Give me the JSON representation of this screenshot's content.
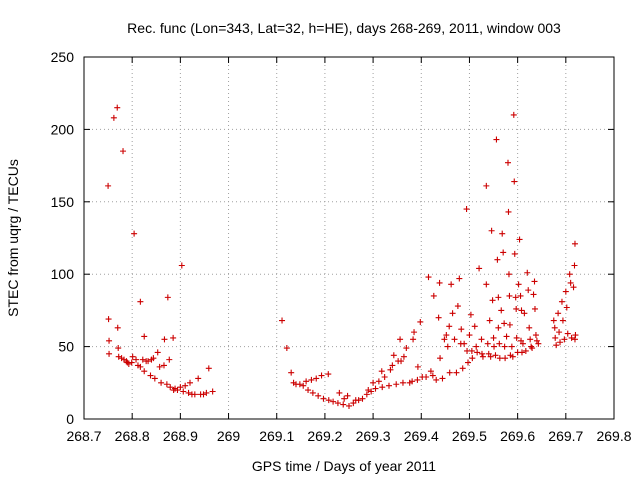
{
  "chart_data": {
    "type": "scatter",
    "title": "Rec. func (Lon=343, Lat=32, h=HE), days 268-269, 2011, window 003",
    "xlabel": "GPS time / Days of year 2011",
    "ylabel": "STEC from uqrg / TECUs",
    "xlim": [
      268.7,
      269.8
    ],
    "ylim": [
      0,
      250
    ],
    "xticks": [
      "268.7",
      "268.8",
      "268.9",
      "269",
      "269.1",
      "269.2",
      "269.3",
      "269.4",
      "269.5",
      "269.6",
      "269.7",
      "269.8"
    ],
    "yticks": [
      "0",
      "50",
      "100",
      "150",
      "200",
      "250"
    ],
    "grid": true,
    "marker": "+",
    "color": "#cc0000",
    "series": [
      {
        "name": "STEC",
        "points": [
          [
            268.75,
            161
          ],
          [
            268.751,
            69
          ],
          [
            268.752,
            54
          ],
          [
            268.752,
            45
          ],
          [
            268.762,
            208
          ],
          [
            268.769,
            215
          ],
          [
            268.77,
            63
          ],
          [
            268.771,
            49
          ],
          [
            268.772,
            43
          ],
          [
            268.778,
            42
          ],
          [
            268.781,
            185
          ],
          [
            268.783,
            41
          ],
          [
            268.788,
            40
          ],
          [
            268.79,
            39
          ],
          [
            268.793,
            38
          ],
          [
            268.799,
            39
          ],
          [
            268.801,
            43
          ],
          [
            268.804,
            128
          ],
          [
            268.808,
            41
          ],
          [
            268.812,
            37
          ],
          [
            268.817,
            81
          ],
          [
            268.817,
            36
          ],
          [
            268.822,
            41
          ],
          [
            268.825,
            57
          ],
          [
            268.825,
            33
          ],
          [
            268.829,
            40
          ],
          [
            268.833,
            40
          ],
          [
            268.838,
            30
          ],
          [
            268.84,
            41
          ],
          [
            268.844,
            42
          ],
          [
            268.847,
            28
          ],
          [
            268.853,
            46
          ],
          [
            268.857,
            36
          ],
          [
            268.86,
            25
          ],
          [
            268.866,
            37
          ],
          [
            268.867,
            55
          ],
          [
            268.872,
            24
          ],
          [
            268.874,
            84
          ],
          [
            268.877,
            41
          ],
          [
            268.879,
            22
          ],
          [
            268.885,
            56
          ],
          [
            268.886,
            20
          ],
          [
            268.889,
            21
          ],
          [
            268.894,
            20
          ],
          [
            268.9,
            22
          ],
          [
            268.903,
            106
          ],
          [
            268.906,
            19
          ],
          [
            268.91,
            23
          ],
          [
            268.917,
            18
          ],
          [
            268.92,
            25
          ],
          [
            268.924,
            17
          ],
          [
            268.93,
            17
          ],
          [
            268.937,
            28
          ],
          [
            268.942,
            17
          ],
          [
            268.948,
            17
          ],
          [
            268.954,
            18
          ],
          [
            268.959,
            35
          ],
          [
            268.967,
            19
          ],
          [
            269.111,
            68
          ],
          [
            269.121,
            49
          ],
          [
            269.13,
            32
          ],
          [
            269.135,
            25
          ],
          [
            269.14,
            24
          ],
          [
            269.148,
            24
          ],
          [
            269.155,
            23
          ],
          [
            269.161,
            26
          ],
          [
            269.165,
            20
          ],
          [
            269.172,
            27
          ],
          [
            269.175,
            18
          ],
          [
            269.182,
            28
          ],
          [
            269.186,
            16
          ],
          [
            269.193,
            30
          ],
          [
            269.197,
            14
          ],
          [
            269.207,
            31
          ],
          [
            269.208,
            13
          ],
          [
            269.217,
            12
          ],
          [
            269.227,
            11
          ],
          [
            269.23,
            18
          ],
          [
            269.238,
            10
          ],
          [
            269.24,
            14
          ],
          [
            269.247,
            16
          ],
          [
            269.25,
            9
          ],
          [
            269.259,
            11
          ],
          [
            269.264,
            13
          ],
          [
            269.27,
            13
          ],
          [
            269.278,
            14
          ],
          [
            269.287,
            17
          ],
          [
            269.29,
            20
          ],
          [
            269.296,
            19
          ],
          [
            269.3,
            25
          ],
          [
            269.305,
            21
          ],
          [
            269.312,
            26
          ],
          [
            269.318,
            33
          ],
          [
            269.319,
            22
          ],
          [
            269.324,
            29
          ],
          [
            269.333,
            23
          ],
          [
            269.336,
            34
          ],
          [
            269.34,
            37
          ],
          [
            269.343,
            44
          ],
          [
            269.348,
            24
          ],
          [
            269.352,
            40
          ],
          [
            269.356,
            55
          ],
          [
            269.358,
            40
          ],
          [
            269.362,
            25
          ],
          [
            269.364,
            43
          ],
          [
            269.369,
            49
          ],
          [
            269.376,
            25
          ],
          [
            269.381,
            26
          ],
          [
            269.383,
            55
          ],
          [
            269.385,
            60
          ],
          [
            269.392,
            27
          ],
          [
            269.393,
            36
          ],
          [
            269.398,
            67
          ],
          [
            269.402,
            29
          ],
          [
            269.41,
            29
          ],
          [
            269.415,
            98
          ],
          [
            269.42,
            33
          ],
          [
            269.424,
            30
          ],
          [
            269.426,
            85
          ],
          [
            269.431,
            27
          ],
          [
            269.436,
            70
          ],
          [
            269.438,
            94
          ],
          [
            269.439,
            42
          ],
          [
            269.444,
            28
          ],
          [
            269.448,
            55
          ],
          [
            269.452,
            58
          ],
          [
            269.455,
            50
          ],
          [
            269.458,
            64
          ],
          [
            269.459,
            32
          ],
          [
            269.462,
            93
          ],
          [
            269.465,
            73
          ],
          [
            269.469,
            55
          ],
          [
            269.473,
            32
          ],
          [
            269.476,
            78
          ],
          [
            269.479,
            97
          ],
          [
            269.482,
            52
          ],
          [
            269.483,
            62
          ],
          [
            269.486,
            35
          ],
          [
            269.489,
            52
          ],
          [
            269.494,
            145
          ],
          [
            269.495,
            47
          ],
          [
            269.497,
            39
          ],
          [
            269.5,
            58
          ],
          [
            269.503,
            72
          ],
          [
            269.505,
            47
          ],
          [
            269.506,
            42
          ],
          [
            269.511,
            64
          ],
          [
            269.514,
            50
          ],
          [
            269.516,
            46
          ],
          [
            269.52,
            104
          ],
          [
            269.525,
            55
          ],
          [
            269.526,
            45
          ],
          [
            269.528,
            43
          ],
          [
            269.535,
            161
          ],
          [
            269.535,
            93
          ],
          [
            269.538,
            52
          ],
          [
            269.54,
            45
          ],
          [
            269.542,
            68
          ],
          [
            269.544,
            43
          ],
          [
            269.546,
            130
          ],
          [
            269.548,
            82
          ],
          [
            269.55,
            56
          ],
          [
            269.551,
            50
          ],
          [
            269.554,
            44
          ],
          [
            269.556,
            193
          ],
          [
            269.558,
            110
          ],
          [
            269.56,
            63
          ],
          [
            269.56,
            84
          ],
          [
            269.562,
            52
          ],
          [
            269.563,
            42
          ],
          [
            269.566,
            75
          ],
          [
            269.568,
            128
          ],
          [
            269.57,
            115
          ],
          [
            269.572,
            66
          ],
          [
            269.573,
            50
          ],
          [
            269.574,
            42
          ],
          [
            269.577,
            57
          ],
          [
            269.58,
            177
          ],
          [
            269.581,
            143
          ],
          [
            269.582,
            100
          ],
          [
            269.583,
            85
          ],
          [
            269.584,
            65
          ],
          [
            269.585,
            44
          ],
          [
            269.588,
            50
          ],
          [
            269.59,
            43
          ],
          [
            269.592,
            210
          ],
          [
            269.593,
            164
          ],
          [
            269.594,
            114
          ],
          [
            269.596,
            84
          ],
          [
            269.597,
            76
          ],
          [
            269.598,
            56
          ],
          [
            269.6,
            46
          ],
          [
            269.602,
            93
          ],
          [
            269.604,
            124
          ],
          [
            269.606,
            85
          ],
          [
            269.607,
            54
          ],
          [
            269.608,
            75
          ],
          [
            269.609,
            46
          ],
          [
            269.611,
            52
          ],
          [
            269.614,
            73
          ],
          [
            269.617,
            47
          ],
          [
            269.62,
            101
          ],
          [
            269.622,
            89
          ],
          [
            269.624,
            63
          ],
          [
            269.626,
            55
          ],
          [
            269.628,
            50
          ],
          [
            269.63,
            49
          ],
          [
            269.633,
            86
          ],
          [
            269.635,
            95
          ],
          [
            269.636,
            76
          ],
          [
            269.638,
            58
          ],
          [
            269.64,
            54
          ],
          [
            269.643,
            52
          ],
          [
            269.675,
            68
          ],
          [
            269.677,
            63
          ],
          [
            269.678,
            56
          ],
          [
            269.68,
            51
          ],
          [
            269.684,
            73
          ],
          [
            269.686,
            60
          ],
          [
            269.688,
            53
          ],
          [
            269.692,
            81
          ],
          [
            269.694,
            68
          ],
          [
            269.697,
            55
          ],
          [
            269.7,
            88
          ],
          [
            269.702,
            77
          ],
          [
            269.704,
            59
          ],
          [
            269.708,
            100
          ],
          [
            269.71,
            94
          ],
          [
            269.712,
            56
          ],
          [
            269.716,
            91
          ],
          [
            269.718,
            106
          ],
          [
            269.719,
            121
          ],
          [
            269.719,
            55
          ],
          [
            269.72,
            58
          ]
        ]
      }
    ]
  }
}
